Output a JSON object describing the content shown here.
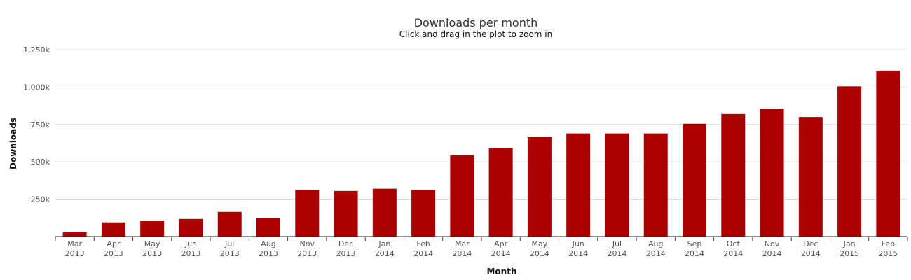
{
  "chart_data": {
    "type": "bar",
    "title": "Downloads per month",
    "subtitle": "Click and drag in the plot to zoom in",
    "xlabel": "Month",
    "ylabel": "Downloads",
    "categories": [
      [
        "Mar",
        "2013"
      ],
      [
        "Apr",
        "2013"
      ],
      [
        "May",
        "2013"
      ],
      [
        "Jun",
        "2013"
      ],
      [
        "Jul",
        "2013"
      ],
      [
        "Aug",
        "2013"
      ],
      [
        "Nov",
        "2013"
      ],
      [
        "Dec",
        "2013"
      ],
      [
        "Jan",
        "2014"
      ],
      [
        "Feb",
        "2014"
      ],
      [
        "Mar",
        "2014"
      ],
      [
        "Apr",
        "2014"
      ],
      [
        "May",
        "2014"
      ],
      [
        "Jun",
        "2014"
      ],
      [
        "Jul",
        "2014"
      ],
      [
        "Aug",
        "2014"
      ],
      [
        "Sep",
        "2014"
      ],
      [
        "Oct",
        "2014"
      ],
      [
        "Nov",
        "2014"
      ],
      [
        "Dec",
        "2014"
      ],
      [
        "Jan",
        "2015"
      ],
      [
        "Feb",
        "2015"
      ]
    ],
    "values": [
      28000,
      95000,
      107000,
      118000,
      165000,
      122000,
      310000,
      305000,
      320000,
      310000,
      545000,
      590000,
      665000,
      690000,
      690000,
      690000,
      755000,
      820000,
      855000,
      800000,
      1005000,
      1110000
    ],
    "ylim": [
      0,
      1250000
    ],
    "yticks": [
      250000,
      500000,
      750000,
      1000000,
      1250000
    ],
    "ytick_labels": [
      "250k",
      "500k",
      "750k",
      "1,000k",
      "1,250k"
    ],
    "bar_color": "#aa0000",
    "grid": true,
    "legend": false
  }
}
